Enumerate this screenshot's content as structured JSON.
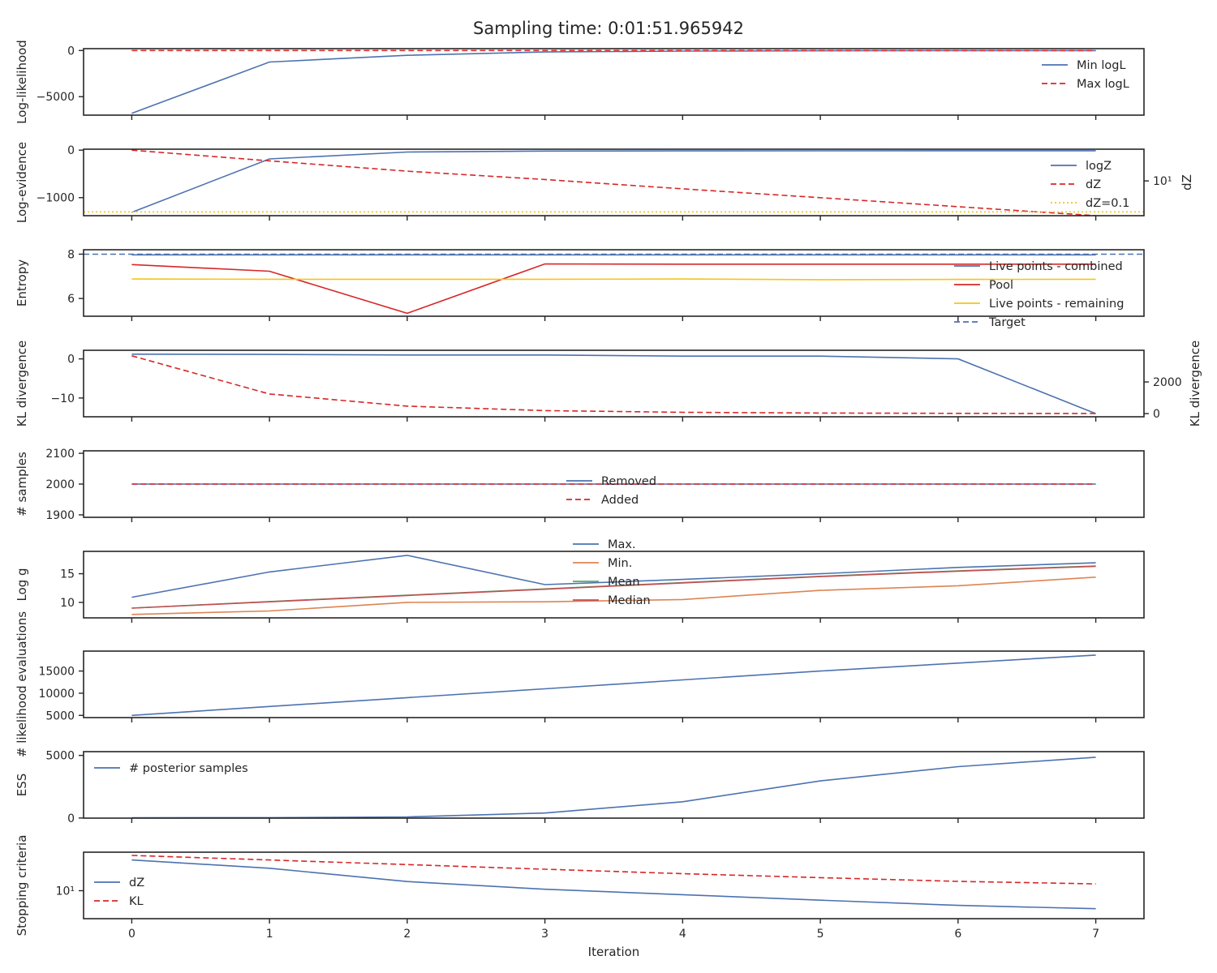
{
  "chart_data": [
    {
      "type": "line",
      "suptitle": "Sampling time: 0:01:51.965942",
      "x": [
        0,
        1,
        2,
        3,
        4,
        5,
        6,
        7
      ],
      "xlabel": "Iteration",
      "xlim": [
        -0.35,
        7.35
      ],
      "xticks": [
        "0",
        "1",
        "2",
        "3",
        "4",
        "5",
        "6",
        "7"
      ]
    },
    {
      "type": "line",
      "ylabel": "Log-likelihood",
      "ylim": [
        -7000,
        200
      ],
      "yticks": [
        {
          "v": 0,
          "label": "0"
        },
        {
          "v": -5000,
          "label": "−5000"
        }
      ],
      "legend_position": "right",
      "series": [
        {
          "name": "Min logL",
          "values": [
            -6800,
            -1250,
            -520,
            -160,
            -60,
            -30,
            -15,
            -10
          ],
          "color": "#4c72b0",
          "style": "solid"
        },
        {
          "name": "Max logL",
          "values": [
            -5,
            -5,
            -5,
            -5,
            -5,
            -5,
            -5,
            -5
          ],
          "color": "#d62728",
          "style": "dashed"
        }
      ]
    },
    {
      "type": "line",
      "ylabel": "Log-evidence",
      "ylim": [
        -1380,
        20
      ],
      "yticks": [
        {
          "v": 0,
          "label": "0"
        },
        {
          "v": -1000,
          "label": "−1000"
        }
      ],
      "y2label": "dZ",
      "y2_scale": "log",
      "y2lim": [
        3,
        30
      ],
      "y2ticks": [
        {
          "v": 10,
          "label": "10¹"
        }
      ],
      "legend_position": "right",
      "series": [
        {
          "name": "logZ",
          "values": [
            -1310,
            -185,
            -40,
            -20,
            -16,
            -14,
            -13,
            -12
          ],
          "color": "#4c72b0",
          "style": "solid",
          "axis": "left"
        },
        {
          "name": "dZ",
          "values": [
            29,
            20,
            14,
            10.5,
            7.6,
            5.6,
            4.1,
            3.0
          ],
          "color": "#d62728",
          "style": "dashed",
          "axis": "right"
        },
        {
          "name": "dZ=0.1",
          "values": [
            -1300,
            -1300,
            -1300,
            -1300,
            -1300,
            -1300,
            -1300,
            -1300
          ],
          "color": "#f5c518",
          "style": "dotted",
          "axis": "left",
          "full_width": true
        }
      ]
    },
    {
      "type": "line",
      "ylabel": "Entropy",
      "ylim": [
        5.2,
        8.2
      ],
      "yticks": [
        {
          "v": 8,
          "label": "8"
        },
        {
          "v": 6,
          "label": "6"
        }
      ],
      "legend_position": "right",
      "series": [
        {
          "name": "Live points - combined",
          "values": [
            7.97,
            7.97,
            7.97,
            7.97,
            7.97,
            7.97,
            7.97,
            7.97
          ],
          "color": "#4c72b0",
          "style": "solid"
        },
        {
          "name": "Pool",
          "values": [
            7.53,
            7.23,
            5.33,
            7.56,
            7.55,
            7.55,
            7.55,
            7.55
          ],
          "color": "#d62728",
          "style": "solid"
        },
        {
          "name": "Live points - remaining",
          "values": [
            6.88,
            6.87,
            6.87,
            6.87,
            6.88,
            6.85,
            6.86,
            6.87
          ],
          "color": "#f5c518",
          "style": "solid"
        },
        {
          "name": "Target",
          "values": [
            8.0,
            8.0,
            8.0,
            8.0,
            8.0,
            8.0,
            8.0,
            8.0
          ],
          "color": "#4c72b0",
          "style": "dashed",
          "full_width": true
        }
      ]
    },
    {
      "type": "line",
      "ylabel": "KL divergence",
      "ylim": [
        -14.8,
        2.2
      ],
      "yticks": [
        {
          "v": 0,
          "label": "0"
        },
        {
          "v": -10,
          "label": "−10"
        }
      ],
      "y2label": "KL divergence",
      "y2lim": [
        -200,
        4000
      ],
      "y2ticks": [
        {
          "v": 2000,
          "label": "2000"
        },
        {
          "v": 0,
          "label": "0"
        }
      ],
      "series": [
        {
          "values": [
            1.2,
            1.15,
            1.0,
            1.0,
            0.7,
            0.7,
            0.0,
            -14.0
          ],
          "color": "#4c72b0",
          "style": "solid",
          "axis": "left"
        },
        {
          "values": [
            3650,
            1240,
            470,
            190,
            80,
            35,
            15,
            5
          ],
          "color": "#d62728",
          "style": "dashed",
          "axis": "right"
        }
      ]
    },
    {
      "type": "line",
      "ylabel": "# samples",
      "ylim": [
        1892,
        2108
      ],
      "yticks": [
        {
          "v": 2100,
          "label": "2100"
        },
        {
          "v": 2000,
          "label": "2000"
        },
        {
          "v": 1900,
          "label": "1900"
        }
      ],
      "legend_position": "center",
      "series": [
        {
          "name": "Removed",
          "values": [
            2000,
            2000,
            2000,
            2000,
            2000,
            2000,
            2000,
            2000
          ],
          "color": "#4c72b0",
          "style": "solid"
        },
        {
          "name": "Added",
          "values": [
            2000,
            2000,
            2000,
            2000,
            2000,
            2000,
            2000,
            2000
          ],
          "color": "#d62728",
          "style": "dashed"
        }
      ]
    },
    {
      "type": "line",
      "ylabel": "Log g",
      "ylim": [
        7.3,
        18.9
      ],
      "yticks": [
        {
          "v": 15,
          "label": "15"
        },
        {
          "v": 10,
          "label": "10"
        }
      ],
      "legend_position": "center",
      "series": [
        {
          "name": "Max.",
          "values": [
            10.9,
            15.3,
            18.2,
            13.1,
            14.0,
            15.0,
            16.1,
            16.9
          ],
          "color": "#4c72b0",
          "style": "solid"
        },
        {
          "name": "Min.",
          "values": [
            7.9,
            8.5,
            10.0,
            10.1,
            10.5,
            12.1,
            12.9,
            14.4
          ],
          "color": "#dd8452",
          "style": "solid"
        },
        {
          "name": "Mean",
          "values": [
            9.0,
            10.15,
            11.25,
            12.35,
            13.45,
            14.55,
            15.5,
            16.35
          ],
          "color": "#55a868",
          "style": "solid"
        },
        {
          "name": "Median",
          "values": [
            9.0,
            10.1,
            11.2,
            12.3,
            13.4,
            14.5,
            15.45,
            16.3
          ],
          "color": "#c44e52",
          "style": "solid"
        }
      ]
    },
    {
      "type": "line",
      "ylabel": "# likelihood evaluations",
      "ylim": [
        4500,
        19500
      ],
      "yticks": [
        {
          "v": 15000,
          "label": "15000"
        },
        {
          "v": 10000,
          "label": "10000"
        },
        {
          "v": 5000,
          "label": "5000"
        }
      ],
      "series": [
        {
          "values": [
            5000,
            7000,
            9000,
            11000,
            13000,
            15000,
            16800,
            18600
          ],
          "color": "#4c72b0",
          "style": "solid"
        }
      ]
    },
    {
      "type": "line",
      "ylabel": "ESS",
      "ylim": [
        -10,
        5300
      ],
      "yticks": [
        {
          "v": 5000,
          "label": "5000"
        },
        {
          "v": 0,
          "label": "0"
        }
      ],
      "legend_position": "upper left",
      "series": [
        {
          "name": "# posterior samples",
          "values": [
            20,
            30,
            90,
            400,
            1300,
            2960,
            4100,
            4850
          ],
          "color": "#4c72b0",
          "style": "solid"
        }
      ]
    },
    {
      "type": "line",
      "ylabel": "Stopping criteria",
      "y_scale": "log",
      "ylim": [
        3.2,
        48
      ],
      "yticks": [
        {
          "v": 10,
          "label": "10¹"
        }
      ],
      "legend_position": "center left",
      "series": [
        {
          "name": "dZ",
          "values": [
            35,
            25,
            14.5,
            10.6,
            8.5,
            6.8,
            5.5,
            4.8
          ],
          "color": "#4c72b0",
          "style": "solid"
        },
        {
          "name": "KL",
          "values": [
            42,
            35,
            29,
            24,
            20,
            17,
            14.6,
            13.2
          ],
          "color": "#d62728",
          "style": "dashed"
        }
      ]
    }
  ]
}
